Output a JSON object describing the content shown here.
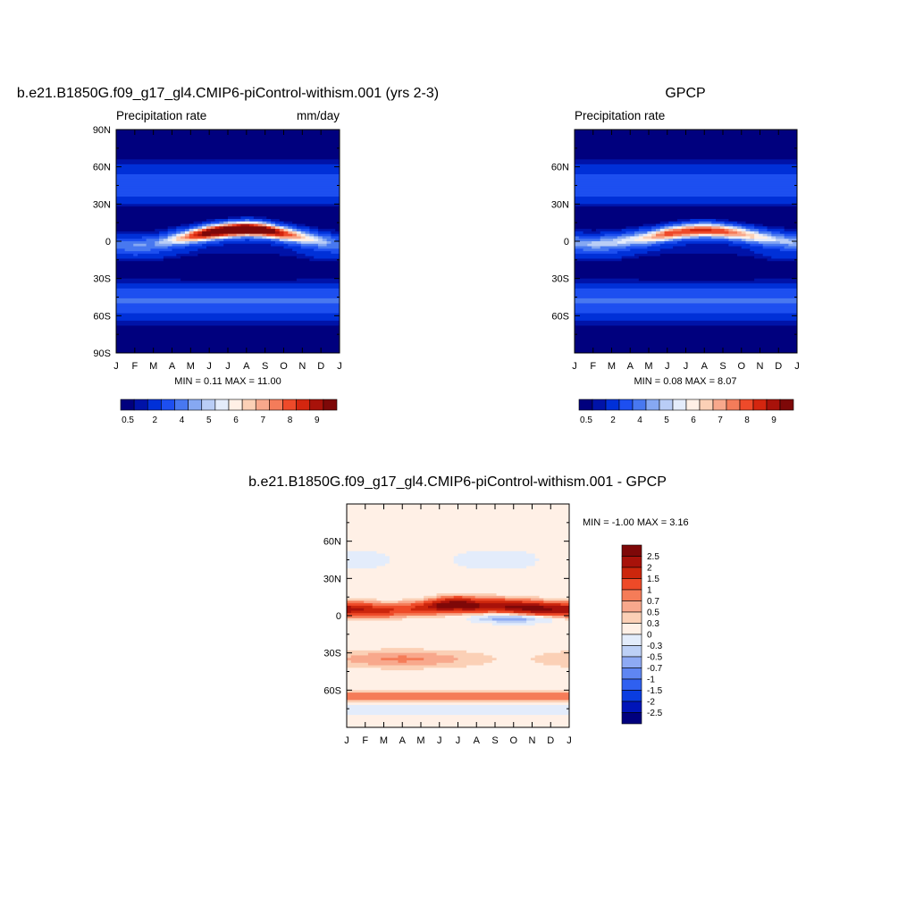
{
  "chart_data": [
    {
      "type": "heatmap",
      "title": "b.e21.B1850G.f09_g17_gl4.CMIP6-piControl-withism.001 (yrs 2-3)",
      "subtitle_left": "Precipitation rate",
      "subtitle_right": "mm/day",
      "x_tick_labels": [
        "J",
        "F",
        "M",
        "A",
        "M",
        "J",
        "J",
        "A",
        "S",
        "O",
        "N",
        "D",
        "J"
      ],
      "y_ticks": [
        -90,
        -60,
        -30,
        0,
        30,
        60,
        90
      ],
      "y_tick_labels": [
        "90S",
        "60S",
        "30S",
        "0",
        "30N",
        "60N",
        "90N"
      ],
      "ylim": [
        -90,
        90
      ],
      "stats": "MIN =   0.11 MAX =  11.00",
      "colorbar_labels": [
        "0.5",
        "2",
        "4",
        "5",
        "6",
        "7",
        "8",
        "9"
      ],
      "colorbar_orientation": "horizontal",
      "field": {
        "ridge_lat": [
          -2,
          -3,
          -2,
          1,
          4,
          7,
          9,
          10,
          9,
          6,
          3,
          0,
          -2
        ],
        "ridge_amp": [
          3,
          3.5,
          3.5,
          5,
          7.5,
          9.8,
          10.5,
          11,
          10,
          8,
          6,
          4.5,
          3
        ],
        "subtrop_s": [
          -1,
          -1,
          -1,
          -1.5,
          -2,
          -2.5,
          -2.5,
          -2.5,
          -2.5,
          -2,
          -1.5,
          -1,
          -1
        ],
        "s_rain": [
          2.5,
          2.5,
          2.5,
          2,
          1.5,
          1,
          1,
          1,
          1,
          1.5,
          2,
          2.5,
          2.5
        ]
      }
    },
    {
      "type": "heatmap",
      "title": "GPCP",
      "subtitle_left": "Precipitation rate",
      "x_tick_labels": [
        "J",
        "F",
        "M",
        "A",
        "M",
        "J",
        "J",
        "A",
        "S",
        "O",
        "N",
        "D",
        "J"
      ],
      "y_ticks": [
        -90,
        -60,
        -30,
        0,
        30,
        60,
        90
      ],
      "y_tick_labels": [
        "",
        "60S",
        "30S",
        "0",
        "30N",
        "60N",
        ""
      ],
      "ylim": [
        -90,
        90
      ],
      "stats": "MIN =   0.08 MAX =   8.07",
      "colorbar_labels": [
        "0.5",
        "2",
        "4",
        "5",
        "6",
        "7",
        "8",
        "9"
      ],
      "colorbar_orientation": "horizontal",
      "field": {
        "ridge_lat": [
          -1,
          -2,
          -1,
          1,
          3,
          6,
          8,
          9,
          8,
          6,
          3,
          1,
          -1
        ],
        "ridge_amp": [
          4,
          4.2,
          4.5,
          5,
          6,
          7.5,
          7.8,
          8,
          7.5,
          6.5,
          5.5,
          4.5,
          4
        ],
        "subtrop_s": [
          -1,
          -1,
          -1,
          -1.5,
          -2,
          -2.5,
          -3,
          -3,
          -2.5,
          -2,
          -1.5,
          -1,
          -1
        ],
        "s_rain": [
          2.5,
          2.5,
          2.5,
          2,
          1.5,
          1,
          1,
          1,
          1,
          1.5,
          2,
          2.5,
          2.5
        ]
      }
    },
    {
      "type": "heatmap",
      "title": "b.e21.B1850G.f09_g17_gl4.CMIP6-piControl-withism.001 - GPCP",
      "x_tick_labels": [
        "J",
        "F",
        "M",
        "A",
        "M",
        "J",
        "J",
        "A",
        "S",
        "O",
        "N",
        "D",
        "J"
      ],
      "y_ticks": [
        -90,
        -60,
        -30,
        0,
        30,
        60,
        90
      ],
      "y_tick_labels": [
        "",
        "60S",
        "30S",
        "0",
        "30N",
        "60N",
        ""
      ],
      "ylim": [
        -90,
        90
      ],
      "stats": "MIN =  -1.00 MAX =   3.16",
      "colorbar_labels": [
        "2.5",
        "2",
        "1.5",
        "1",
        "0.7",
        "0.5",
        "0.3",
        "0",
        "-0.3",
        "-0.5",
        "-0.7",
        "-1",
        "-1.5",
        "-2",
        "-2.5"
      ],
      "colorbar_orientation": "vertical",
      "field": {
        "band_lat": [
          5,
          5,
          4,
          5,
          6,
          8,
          9,
          8,
          8,
          7,
          6,
          5,
          5
        ],
        "band_amp": [
          2.2,
          1.8,
          1.5,
          1.2,
          1.5,
          2.5,
          3.1,
          2.5,
          2.2,
          2.5,
          2.8,
          2.4,
          2.2
        ]
      }
    }
  ],
  "colors": {
    "sequential": [
      "#00007e",
      "#0013a8",
      "#0030d8",
      "#1d4ff0",
      "#4878f0",
      "#86a8f2",
      "#b9cdf6",
      "#e4ecfb",
      "#fff0e6",
      "#fbd0b6",
      "#f8a88c",
      "#f47c5a",
      "#ee4a2a",
      "#d4260f",
      "#a8120a",
      "#7e0808"
    ],
    "diverging": [
      "#00007e",
      "#0015b8",
      "#0a3de0",
      "#2f60f0",
      "#5f86f2",
      "#8eaaf4",
      "#bdd0f6",
      "#e3ecfb",
      "#fff0e6",
      "#fbd0b6",
      "#f8a88c",
      "#f57c58",
      "#ee4a28",
      "#cc260c",
      "#a8120a",
      "#7e0808"
    ]
  }
}
